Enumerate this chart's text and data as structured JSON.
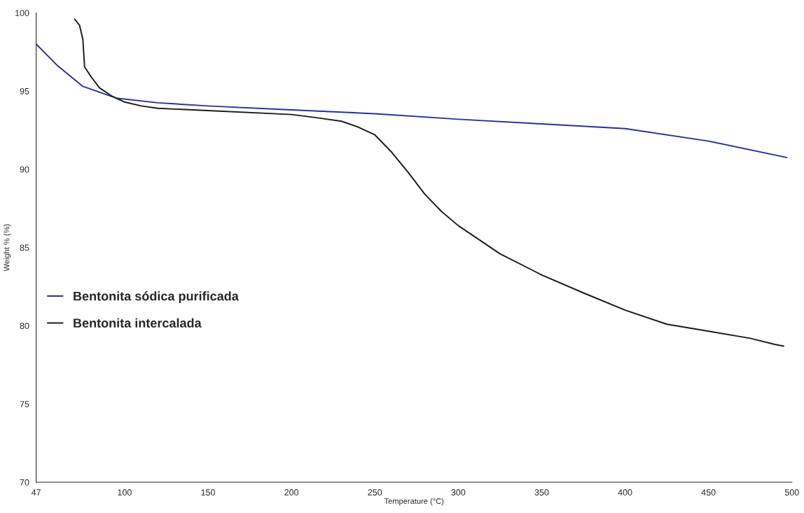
{
  "chart_data": {
    "type": "line",
    "xlabel": "Temperature (°C)",
    "ylabel": "Weight % (%)",
    "xlim": [
      47,
      500
    ],
    "ylim": [
      70,
      100
    ],
    "xticks": [
      47,
      100,
      150,
      200,
      250,
      300,
      350,
      400,
      450,
      500
    ],
    "yticks": [
      70,
      75,
      80,
      85,
      90,
      95,
      100
    ],
    "grid": false,
    "legend": "bottom left",
    "marker": "none",
    "line_style": "solid",
    "series": [
      {
        "name": "Bentonita sódica purificada",
        "color": "#2a2f9a",
        "x": [
          47,
          60,
          75,
          95,
          120,
          150,
          200,
          250,
          300,
          350,
          400,
          450,
          497
        ],
        "values": [
          98.0,
          96.6,
          95.3,
          94.55,
          94.25,
          94.05,
          93.8,
          93.55,
          93.2,
          92.9,
          92.6,
          91.8,
          90.75
        ]
      },
      {
        "name": "Bentonita intercalada",
        "color": "#1a1a1a",
        "x": [
          70,
          73,
          75,
          76,
          80,
          85,
          92,
          100,
          110,
          120,
          150,
          200,
          215,
          230,
          240,
          250,
          260,
          270,
          280,
          290,
          300,
          325,
          350,
          375,
          400,
          425,
          450,
          475,
          490,
          495
        ],
        "values": [
          99.6,
          99.2,
          98.3,
          96.55,
          95.9,
          95.2,
          94.7,
          94.3,
          94.05,
          93.9,
          93.75,
          93.5,
          93.3,
          93.07,
          92.7,
          92.2,
          91.1,
          89.8,
          88.4,
          87.3,
          86.4,
          84.6,
          83.25,
          82.1,
          81.0,
          80.1,
          79.65,
          79.2,
          78.8,
          78.7
        ]
      }
    ]
  }
}
